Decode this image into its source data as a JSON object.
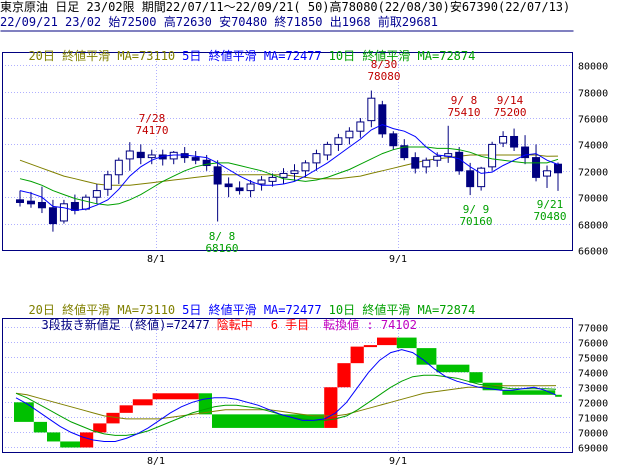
{
  "header": {
    "line1": "東京原油 日足 23/02限 期間22/07/11～22/09/21( 50)高78080(22/08/30)安67390(22/07/13)",
    "line2": "22/09/21 23/02 始72500 高72630 安70480 終71850 出1968 前取29681"
  },
  "legend_top": {
    "ma20": "20日 終値平滑 MA=73110",
    "ma5": "5日 終値平滑 MA=72477",
    "ma10": "10日 終値平滑 MA=72874"
  },
  "legend_bottom": {
    "ma20": "20日 終値平滑 MA=73110",
    "ma5": "5日 終値平滑 MA=72477",
    "ma10": "10日 終値平滑 MA=72874",
    "three_line": "3段抜き新値足 (終値)=72477",
    "state": "陰転中",
    "count": "6 手目",
    "reversal": "転換値 : 74102"
  },
  "colors": {
    "ma20": "#808000",
    "ma5": "#0000ff",
    "ma10": "#00a000",
    "up": "#ff0000",
    "down": "#00c000",
    "bull": "#ffffff",
    "bear": "#000080",
    "annot_high": "#c00000",
    "annot_low": "#00a000",
    "state": "#ff0000",
    "reversal": "#c000c0",
    "axis": "#000080"
  },
  "chart_data": [
    {
      "type": "candlestick",
      "x_ticks": [
        "8/1",
        "9/1"
      ],
      "ylim": [
        66000,
        81000
      ],
      "y_ticks": [
        "80000",
        "78000",
        "76000",
        "74000",
        "72000",
        "70000",
        "68000",
        "66000"
      ],
      "y_tick_values": [
        80000,
        78000,
        76000,
        74000,
        72000,
        70000,
        68000,
        66000
      ],
      "annotations": [
        {
          "date": "7/28",
          "value": "74170",
          "kind": "high"
        },
        {
          "date": "8/30",
          "value": "78080",
          "kind": "high"
        },
        {
          "date": "9/ 8",
          "value": "75410",
          "kind": "high"
        },
        {
          "date": "9/14",
          "value": "75200",
          "kind": "high"
        },
        {
          "date": "8/ 8",
          "value": "68160",
          "kind": "low"
        },
        {
          "date": "9/ 9",
          "value": "70160",
          "kind": "low"
        },
        {
          "date": "9/21",
          "value": "70480",
          "kind": "low"
        }
      ],
      "ohlc": [
        [
          69800,
          70500,
          69300,
          69600
        ],
        [
          69700,
          70400,
          69200,
          69500
        ],
        [
          69600,
          70800,
          68800,
          69200
        ],
        [
          69200,
          69800,
          67390,
          68000
        ],
        [
          68200,
          69800,
          68000,
          69500
        ],
        [
          69600,
          70200,
          68700,
          69000
        ],
        [
          69100,
          70200,
          69000,
          70000
        ],
        [
          70000,
          71000,
          69500,
          70500
        ],
        [
          70600,
          72000,
          70100,
          71700
        ],
        [
          71700,
          73000,
          71000,
          72800
        ],
        [
          72900,
          74170,
          72000,
          73500
        ],
        [
          73400,
          74000,
          72500,
          73000
        ],
        [
          73000,
          73600,
          72500,
          73200
        ],
        [
          73200,
          73600,
          72400,
          72900
        ],
        [
          72900,
          73500,
          72500,
          73400
        ],
        [
          73300,
          73800,
          72600,
          73000
        ],
        [
          73000,
          73500,
          72500,
          72800
        ],
        [
          72800,
          73200,
          72000,
          72400
        ],
        [
          72300,
          72800,
          68160,
          71000
        ],
        [
          71000,
          71500,
          70000,
          70800
        ],
        [
          70700,
          71200,
          70200,
          70500
        ],
        [
          70500,
          71300,
          70000,
          71000
        ],
        [
          71000,
          71600,
          70500,
          71300
        ],
        [
          71200,
          71800,
          70800,
          71500
        ],
        [
          71500,
          72200,
          71000,
          71800
        ],
        [
          71800,
          72500,
          71200,
          72000
        ],
        [
          72000,
          72800,
          71500,
          72600
        ],
        [
          72600,
          73600,
          72000,
          73300
        ],
        [
          73200,
          74200,
          72800,
          74000
        ],
        [
          74000,
          74800,
          73500,
          74500
        ],
        [
          74500,
          75300,
          74000,
          75000
        ],
        [
          75000,
          76000,
          74500,
          75700
        ],
        [
          75800,
          78080,
          75300,
          77500
        ],
        [
          77000,
          77300,
          74500,
          74800
        ],
        [
          74800,
          75000,
          73600,
          73900
        ],
        [
          73900,
          74400,
          72800,
          73000
        ],
        [
          73000,
          73400,
          71800,
          72200
        ],
        [
          72300,
          73000,
          71800,
          72800
        ],
        [
          72800,
          73400,
          72300,
          73100
        ],
        [
          73100,
          75410,
          72600,
          73300
        ],
        [
          73400,
          73800,
          71700,
          72000
        ],
        [
          72000,
          72600,
          70160,
          70800
        ],
        [
          70800,
          72300,
          70500,
          72200
        ],
        [
          72300,
          74200,
          72000,
          74000
        ],
        [
          74100,
          75000,
          73800,
          74600
        ],
        [
          74600,
          75200,
          73500,
          73800
        ],
        [
          73800,
          74700,
          72500,
          73000
        ],
        [
          73000,
          74000,
          71200,
          71500
        ],
        [
          71600,
          72400,
          70700,
          72000
        ],
        [
          72500,
          72630,
          70480,
          71850
        ]
      ],
      "ma5": [
        70500,
        70300,
        70000,
        69300,
        69200,
        69000,
        69100,
        69400,
        69800,
        70600,
        71600,
        72300,
        72800,
        73100,
        73200,
        73200,
        73100,
        73000,
        72600,
        72100,
        71600,
        71200,
        70900,
        70900,
        71000,
        71200,
        71600,
        72100,
        72600,
        73200,
        73800,
        74400,
        75100,
        75500,
        75200,
        75000,
        74600,
        73800,
        73200,
        73100,
        72900,
        72300,
        71800,
        71900,
        72400,
        72800,
        73200,
        73300,
        72800,
        72477
      ],
      "ma10": [
        71400,
        71200,
        70900,
        70500,
        70200,
        69900,
        69700,
        69500,
        69400,
        69500,
        69800,
        70200,
        70700,
        71200,
        71600,
        72000,
        72300,
        72500,
        72600,
        72600,
        72400,
        72200,
        72000,
        71700,
        71400,
        71300,
        71200,
        71300,
        71500,
        71800,
        72100,
        72500,
        72900,
        73300,
        73600,
        73800,
        73800,
        73800,
        73700,
        73700,
        73600,
        73400,
        73100,
        72900,
        72800,
        72700,
        72600,
        72600,
        72600,
        72874
      ],
      "ma20": [
        72800,
        72500,
        72200,
        71900,
        71600,
        71400,
        71200,
        71000,
        70900,
        70900,
        70900,
        71000,
        71100,
        71200,
        71300,
        71400,
        71500,
        71600,
        71700,
        71700,
        71700,
        71700,
        71700,
        71700,
        71700,
        71600,
        71500,
        71400,
        71400,
        71400,
        71500,
        71600,
        71800,
        72000,
        72200,
        72400,
        72600,
        72800,
        72900,
        73000,
        73100,
        73200,
        73200,
        73200,
        73200,
        73200,
        73200,
        73200,
        73100,
        73110
      ]
    },
    {
      "type": "three-line-break",
      "x_ticks": [
        "8/1",
        "9/1"
      ],
      "ylim": [
        68700,
        77600
      ],
      "y_ticks": [
        "77000",
        "76000",
        "75000",
        "74000",
        "73000",
        "72000",
        "71000",
        "70000",
        "69000"
      ],
      "y_tick_values": [
        77000,
        76000,
        75000,
        74000,
        73000,
        72000,
        71000,
        70000,
        69000
      ],
      "blocks": [
        {
          "from": 0,
          "to": 3,
          "low": 70700,
          "high": 72000,
          "dir": "down"
        },
        {
          "from": 3,
          "to": 5,
          "low": 70000,
          "high": 70700,
          "dir": "down"
        },
        {
          "from": 5,
          "to": 7,
          "low": 69400,
          "high": 70000,
          "dir": "down"
        },
        {
          "from": 7,
          "to": 10,
          "low": 69000,
          "high": 69400,
          "dir": "down"
        },
        {
          "from": 10,
          "to": 12,
          "low": 69000,
          "high": 70000,
          "dir": "up"
        },
        {
          "from": 12,
          "to": 14,
          "low": 70000,
          "high": 70600,
          "dir": "up"
        },
        {
          "from": 14,
          "to": 16,
          "low": 70600,
          "high": 71300,
          "dir": "up"
        },
        {
          "from": 16,
          "to": 18,
          "low": 71300,
          "high": 71800,
          "dir": "up"
        },
        {
          "from": 18,
          "to": 21,
          "low": 71800,
          "high": 72200,
          "dir": "up"
        },
        {
          "from": 21,
          "to": 28,
          "low": 72200,
          "high": 72600,
          "dir": "up"
        },
        {
          "from": 28,
          "to": 30,
          "low": 71200,
          "high": 72600,
          "dir": "down"
        },
        {
          "from": 30,
          "to": 47,
          "low": 70300,
          "high": 71200,
          "dir": "down"
        },
        {
          "from": 47,
          "to": 49,
          "low": 70300,
          "high": 73000,
          "dir": "up"
        },
        {
          "from": 49,
          "to": 51,
          "low": 73000,
          "high": 74600,
          "dir": "up"
        },
        {
          "from": 51,
          "to": 53,
          "low": 74600,
          "high": 75700,
          "dir": "up"
        },
        {
          "from": 53,
          "to": 55,
          "low": 75700,
          "high": 75800,
          "dir": "up"
        },
        {
          "from": 55,
          "to": 58,
          "low": 75800,
          "high": 76300,
          "dir": "up"
        },
        {
          "from": 58,
          "to": 61,
          "low": 75600,
          "high": 76300,
          "dir": "down"
        },
        {
          "from": 61,
          "to": 64,
          "low": 74500,
          "high": 75600,
          "dir": "down"
        },
        {
          "from": 64,
          "to": 69,
          "low": 74000,
          "high": 74500,
          "dir": "down"
        },
        {
          "from": 69,
          "to": 71,
          "low": 73300,
          "high": 74000,
          "dir": "down"
        },
        {
          "from": 71,
          "to": 74,
          "low": 72800,
          "high": 73300,
          "dir": "down"
        },
        {
          "from": 74,
          "to": 82,
          "low": 72500,
          "high": 72800,
          "dir": "down"
        },
        {
          "from": 82,
          "to": 83,
          "low": 72400,
          "high": 72500,
          "dir": "down"
        }
      ],
      "ma5": [
        72300,
        71900,
        71400,
        70900,
        70400,
        70000,
        69700,
        69500,
        69400,
        69400,
        69600,
        69900,
        70300,
        70800,
        71300,
        71700,
        72000,
        72200,
        72300,
        72300,
        72200,
        72000,
        71800,
        71500,
        71200,
        71000,
        70800,
        70800,
        70900,
        71300,
        72000,
        73000,
        74000,
        74800,
        75300,
        75500,
        75300,
        74800,
        74200,
        73700,
        73400,
        73200,
        73000,
        72900,
        72800,
        72800,
        72900,
        73000,
        72800,
        72477
      ],
      "ma10": [
        72600,
        72300,
        71900,
        71500,
        71100,
        70700,
        70400,
        70100,
        69900,
        69800,
        69800,
        69900,
        70100,
        70400,
        70700,
        71000,
        71300,
        71500,
        71700,
        71800,
        71800,
        71700,
        71600,
        71400,
        71200,
        71000,
        70900,
        70800,
        70800,
        70900,
        71100,
        71500,
        72000,
        72500,
        73000,
        73400,
        73700,
        73800,
        73800,
        73700,
        73600,
        73400,
        73200,
        73100,
        73000,
        72900,
        72900,
        72900,
        72900,
        72874
      ],
      "ma20": [
        72600,
        72500,
        72300,
        72100,
        71900,
        71700,
        71500,
        71300,
        71100,
        71000,
        70900,
        70900,
        70900,
        70900,
        71000,
        71100,
        71200,
        71300,
        71400,
        71500,
        71500,
        71500,
        71500,
        71500,
        71400,
        71300,
        71200,
        71100,
        71100,
        71100,
        71200,
        71400,
        71600,
        71800,
        72000,
        72200,
        72400,
        72600,
        72700,
        72800,
        72900,
        73000,
        73000,
        73100,
        73100,
        73100,
        73100,
        73100,
        73100,
        73110
      ]
    }
  ]
}
